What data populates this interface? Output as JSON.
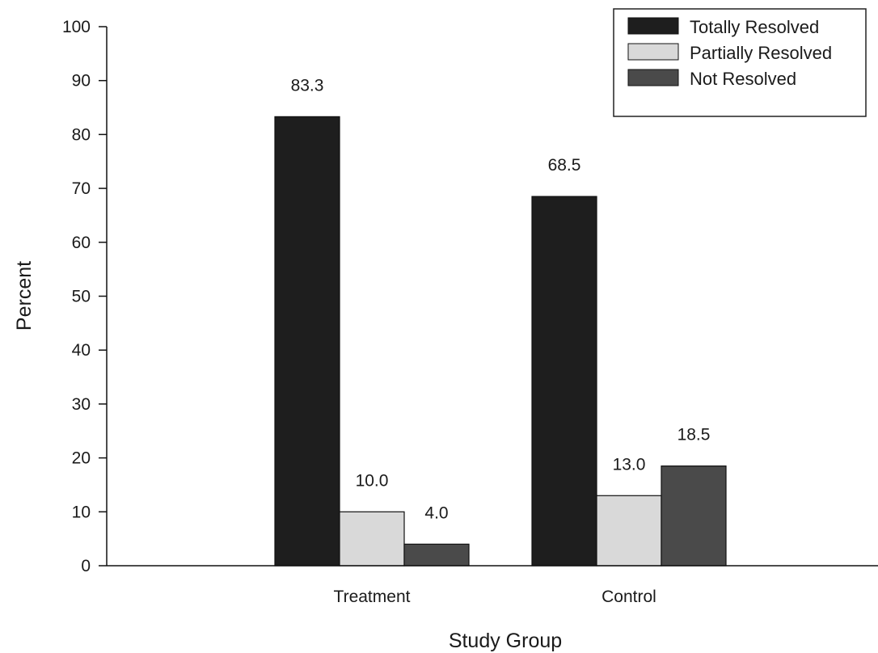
{
  "chart_data": {
    "type": "bar",
    "title": "",
    "xlabel": "Study Group",
    "ylabel": "Percent",
    "ylim": [
      0,
      100
    ],
    "yticks": [
      0,
      10,
      20,
      30,
      40,
      50,
      60,
      70,
      80,
      90,
      100
    ],
    "categories": [
      "Treatment",
      "Control"
    ],
    "series": [
      {
        "name": "Totally Resolved",
        "values": [
          83.3,
          68.5
        ],
        "labels": [
          "83.3",
          "68.5"
        ],
        "color": "#1e1e1e"
      },
      {
        "name": "Partially Resolved",
        "values": [
          10.0,
          13.0
        ],
        "labels": [
          "10.0",
          "13.0"
        ],
        "color": "#d9d9d9"
      },
      {
        "name": "Not Resolved",
        "values": [
          4.0,
          18.5
        ],
        "labels": [
          "4.0",
          "18.5"
        ],
        "color": "#4a4a4a"
      }
    ],
    "legend_position": "top-right",
    "grid": false
  }
}
